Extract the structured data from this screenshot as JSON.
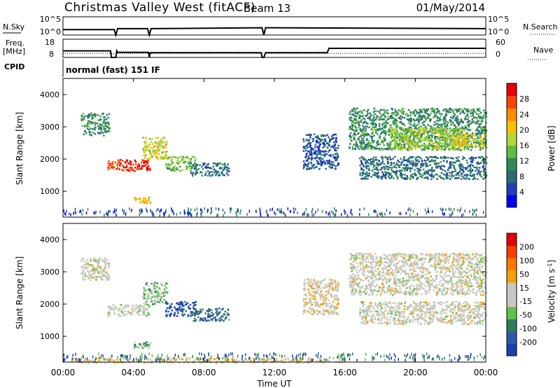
{
  "header": {
    "site": "Christmas Valley West (fitACF)",
    "beam": "Beam 13",
    "date": "01/May/2014"
  },
  "params": {
    "nsky_label": "N.Sky",
    "nsearch_label": "N.Search",
    "noise_ticks": [
      "10^5",
      "10^0"
    ],
    "freq_label_line1": "Freq.",
    "freq_label_line2": "[MHz]",
    "freq_ticks": [
      "18",
      "8"
    ],
    "nave_label": "Nave",
    "nave_ticks": [
      "60",
      "0"
    ],
    "cpid_label": "CPID",
    "cpid_value": "normal (fast) 151 IF"
  },
  "colors": {
    "power_scale": [
      "#0000ff",
      "#1f3fb8",
      "#2e6b77",
      "#2e8b57",
      "#5fbf3f",
      "#b0d83c",
      "#f5c400",
      "#ff8c00",
      "#ff4500",
      "#e80000"
    ],
    "velocity_scale": [
      "#1c3fae",
      "#2e5aa8",
      "#2e7d5a",
      "#5ec24a",
      "#c8c8c0",
      "#c8c8c0",
      "#f5a100",
      "#ff7800",
      "#ff3d00",
      "#e00000"
    ]
  },
  "chart_data": [
    {
      "type": "line",
      "name": "noise-panel",
      "ylabel_left": "N.Sky",
      "ylabel_right": "N.Search",
      "y_ticks_left": [
        "10^5",
        "10^0"
      ],
      "y_ticks_right": [
        "10^5",
        "10^0"
      ],
      "x": [
        0,
        2.9,
        3.0,
        3.1,
        4.8,
        4.9,
        5.0,
        11.3,
        11.4,
        11.5,
        24.0
      ],
      "series": [
        {
          "values": [
            0.3,
            0.3,
            0.0,
            0.35,
            0.35,
            0.0,
            0.35,
            0.4,
            0.0,
            0.4,
            0.35
          ]
        }
      ]
    },
    {
      "type": "line",
      "name": "frequency-panel",
      "ylabel_left": "Freq. [MHz]",
      "ylabel_right": "Nave",
      "y_ticks_left": [
        "18",
        "8"
      ],
      "y_ticks_right": [
        "60",
        "0"
      ],
      "series": [
        {
          "x": [
            0,
            2.7,
            2.75,
            3.0,
            3.05,
            3.1,
            4.85,
            4.9,
            4.95,
            11.25,
            11.3,
            11.4,
            11.5,
            15.0,
            15.1,
            24.0
          ],
          "values": [
            11.6,
            11.6,
            8.0,
            8.0,
            11.6,
            10.8,
            10.8,
            8.0,
            10.6,
            10.6,
            8.0,
            8.0,
            10.6,
            10.6,
            13.0,
            13.0
          ]
        },
        {
          "x": [
            0,
            24.0
          ],
          "values": [
            10.2,
            10.2
          ]
        }
      ]
    },
    {
      "type": "heatmap",
      "name": "power-panel",
      "ylabel": "Slant Range [km]",
      "y_ticks": [
        1000,
        2000,
        3000,
        4000
      ],
      "ylim": [
        200,
        4500
      ],
      "xlim": [
        0,
        24
      ],
      "colorbar": {
        "label": "Power [dB]",
        "ticks": [
          "4",
          "8",
          "12",
          "16",
          "20",
          "24",
          "28"
        ],
        "range": [
          0,
          30
        ]
      },
      "features": [
        {
          "t": [
            1.0,
            2.6
          ],
          "r": [
            2750,
            3450
          ],
          "v": 10
        },
        {
          "t": [
            2.5,
            3.2
          ],
          "r": [
            1700,
            2000
          ],
          "v": 26
        },
        {
          "t": [
            3.2,
            4.9
          ],
          "r": [
            1650,
            2000
          ],
          "v": 28
        },
        {
          "t": [
            4.5,
            5.9
          ],
          "r": [
            2000,
            2700
          ],
          "v": 18
        },
        {
          "t": [
            5.8,
            7.5
          ],
          "r": [
            1650,
            2100
          ],
          "v": 14
        },
        {
          "t": [
            7.2,
            9.4
          ],
          "r": [
            1500,
            1900
          ],
          "v": 8
        },
        {
          "t": [
            4.0,
            5.0
          ],
          "r": [
            650,
            850
          ],
          "v": 20
        },
        {
          "t": [
            16.2,
            24.0
          ],
          "r": [
            2300,
            3600
          ],
          "v": 10
        },
        {
          "t": [
            18.5,
            22.8
          ],
          "r": [
            2300,
            3000
          ],
          "v": 16
        },
        {
          "t": [
            22.0,
            24.0
          ],
          "r": [
            2400,
            2800
          ],
          "v": 18
        },
        {
          "t": [
            16.8,
            24.0
          ],
          "r": [
            1400,
            2100
          ],
          "v": 8
        },
        {
          "t": [
            13.6,
            15.6
          ],
          "r": [
            1700,
            2800
          ],
          "v": 6
        }
      ]
    },
    {
      "type": "heatmap",
      "name": "velocity-panel",
      "ylabel": "Slant Range [km]",
      "y_ticks": [
        1000,
        2000,
        3000,
        4000
      ],
      "ylim": [
        200,
        4500
      ],
      "xlim": [
        0,
        24
      ],
      "x_ticks": [
        "00:00",
        "04:00",
        "08:00",
        "12:00",
        "16:00",
        "20:00",
        "00:00"
      ],
      "xlabel": "Time UT",
      "colorbar": {
        "label": "Velocity [m s^-1]",
        "ticks": [
          "200",
          "100",
          "50",
          "15",
          "-15",
          "-50",
          "-100",
          "-200"
        ],
        "range": [
          -250,
          250
        ]
      },
      "features": [
        {
          "t": [
            1.0,
            2.6
          ],
          "r": [
            2750,
            3450
          ],
          "v": 0
        },
        {
          "t": [
            2.5,
            4.9
          ],
          "r": [
            1650,
            2000
          ],
          "v": 0
        },
        {
          "t": [
            4.5,
            5.9
          ],
          "r": [
            2000,
            2700
          ],
          "v": -60
        },
        {
          "t": [
            5.8,
            7.5
          ],
          "r": [
            1650,
            2100
          ],
          "v": -200
        },
        {
          "t": [
            7.2,
            9.4
          ],
          "r": [
            1500,
            1900
          ],
          "v": -150
        },
        {
          "t": [
            4.0,
            5.0
          ],
          "r": [
            650,
            850
          ],
          "v": -80
        },
        {
          "t": [
            16.2,
            24.0
          ],
          "r": [
            2300,
            3600
          ],
          "v": 0
        },
        {
          "t": [
            16.8,
            24.0
          ],
          "r": [
            1400,
            2100
          ],
          "v": 0
        },
        {
          "t": [
            13.6,
            15.6
          ],
          "r": [
            1700,
            2800
          ],
          "v": 20
        },
        {
          "t": [
            0.5,
            16.0
          ],
          "r": [
            200,
            350
          ],
          "v": 40
        }
      ]
    }
  ]
}
